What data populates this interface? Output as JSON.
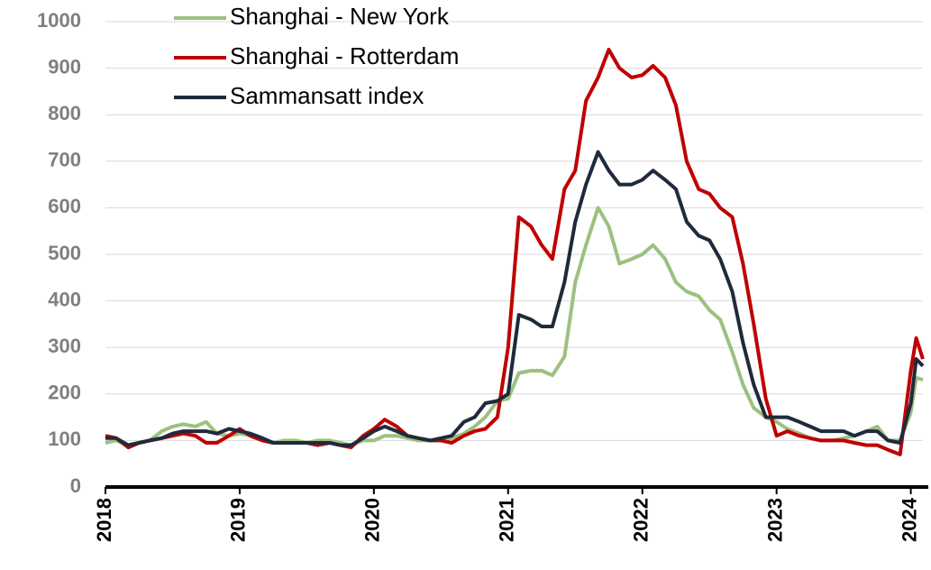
{
  "chart_data": {
    "type": "line",
    "x": [
      2018,
      2018.08,
      2018.17,
      2018.25,
      2018.33,
      2018.42,
      2018.5,
      2018.58,
      2018.67,
      2018.75,
      2018.83,
      2018.92,
      2019,
      2019.08,
      2019.17,
      2019.25,
      2019.33,
      2019.42,
      2019.5,
      2019.58,
      2019.67,
      2019.75,
      2019.83,
      2019.92,
      2020,
      2020.08,
      2020.17,
      2020.25,
      2020.33,
      2020.42,
      2020.5,
      2020.58,
      2020.67,
      2020.75,
      2020.83,
      2020.92,
      2021,
      2021.08,
      2021.17,
      2021.25,
      2021.33,
      2021.42,
      2021.5,
      2021.58,
      2021.67,
      2021.75,
      2021.83,
      2021.92,
      2022,
      2022.08,
      2022.17,
      2022.25,
      2022.33,
      2022.42,
      2022.5,
      2022.58,
      2022.67,
      2022.75,
      2022.83,
      2022.92,
      2023,
      2023.08,
      2023.17,
      2023.25,
      2023.33,
      2023.42,
      2023.5,
      2023.58,
      2023.67,
      2023.75,
      2023.83,
      2023.92,
      2024,
      2024.04,
      2024.09
    ],
    "series": [
      {
        "name": "Shanghai - New York",
        "color": "#9bc17f",
        "values": [
          95,
          100,
          90,
          95,
          100,
          120,
          130,
          135,
          130,
          140,
          115,
          110,
          115,
          110,
          100,
          95,
          100,
          100,
          95,
          100,
          100,
          95,
          90,
          100,
          100,
          110,
          110,
          105,
          100,
          100,
          100,
          105,
          115,
          130,
          150,
          185,
          190,
          245,
          250,
          250,
          240,
          280,
          440,
          520,
          600,
          560,
          480,
          490,
          500,
          520,
          490,
          440,
          420,
          410,
          380,
          360,
          290,
          220,
          170,
          150,
          140,
          125,
          115,
          105,
          100,
          100,
          105,
          110,
          120,
          130,
          100,
          100,
          160,
          235,
          230
        ]
      },
      {
        "name": "Shanghai - Rotterdam",
        "color": "#c00000",
        "values": [
          110,
          105,
          85,
          95,
          100,
          105,
          110,
          115,
          110,
          95,
          95,
          110,
          125,
          110,
          100,
          95,
          95,
          95,
          95,
          90,
          95,
          90,
          85,
          110,
          125,
          145,
          130,
          110,
          105,
          100,
          100,
          95,
          110,
          120,
          125,
          150,
          300,
          580,
          560,
          520,
          490,
          640,
          680,
          830,
          880,
          940,
          900,
          880,
          885,
          905,
          880,
          820,
          700,
          640,
          630,
          600,
          580,
          480,
          350,
          190,
          110,
          120,
          110,
          105,
          100,
          100,
          100,
          95,
          90,
          90,
          80,
          70,
          250,
          320,
          275
        ]
      },
      {
        "name": "Sammansatt index",
        "color": "#1f2a3c",
        "values": [
          105,
          105,
          90,
          95,
          100,
          105,
          115,
          120,
          120,
          120,
          115,
          125,
          120,
          115,
          105,
          95,
          95,
          95,
          95,
          95,
          95,
          90,
          90,
          105,
          120,
          130,
          120,
          110,
          105,
          100,
          105,
          110,
          140,
          150,
          180,
          185,
          200,
          370,
          360,
          345,
          345,
          440,
          570,
          650,
          720,
          680,
          650,
          650,
          660,
          680,
          660,
          640,
          570,
          540,
          530,
          490,
          420,
          310,
          220,
          150,
          150,
          150,
          140,
          130,
          120,
          120,
          120,
          110,
          120,
          120,
          100,
          95,
          180,
          275,
          260
        ]
      }
    ],
    "xlim": [
      2018,
      2024.09
    ],
    "xticks": [
      2018,
      2019,
      2020,
      2021,
      2022,
      2023,
      2024
    ],
    "ylim": [
      0,
      1000
    ],
    "yticks": [
      0,
      100,
      200,
      300,
      400,
      500,
      600,
      700,
      800,
      900,
      1000
    ],
    "grid": true,
    "legend": "top-left"
  }
}
